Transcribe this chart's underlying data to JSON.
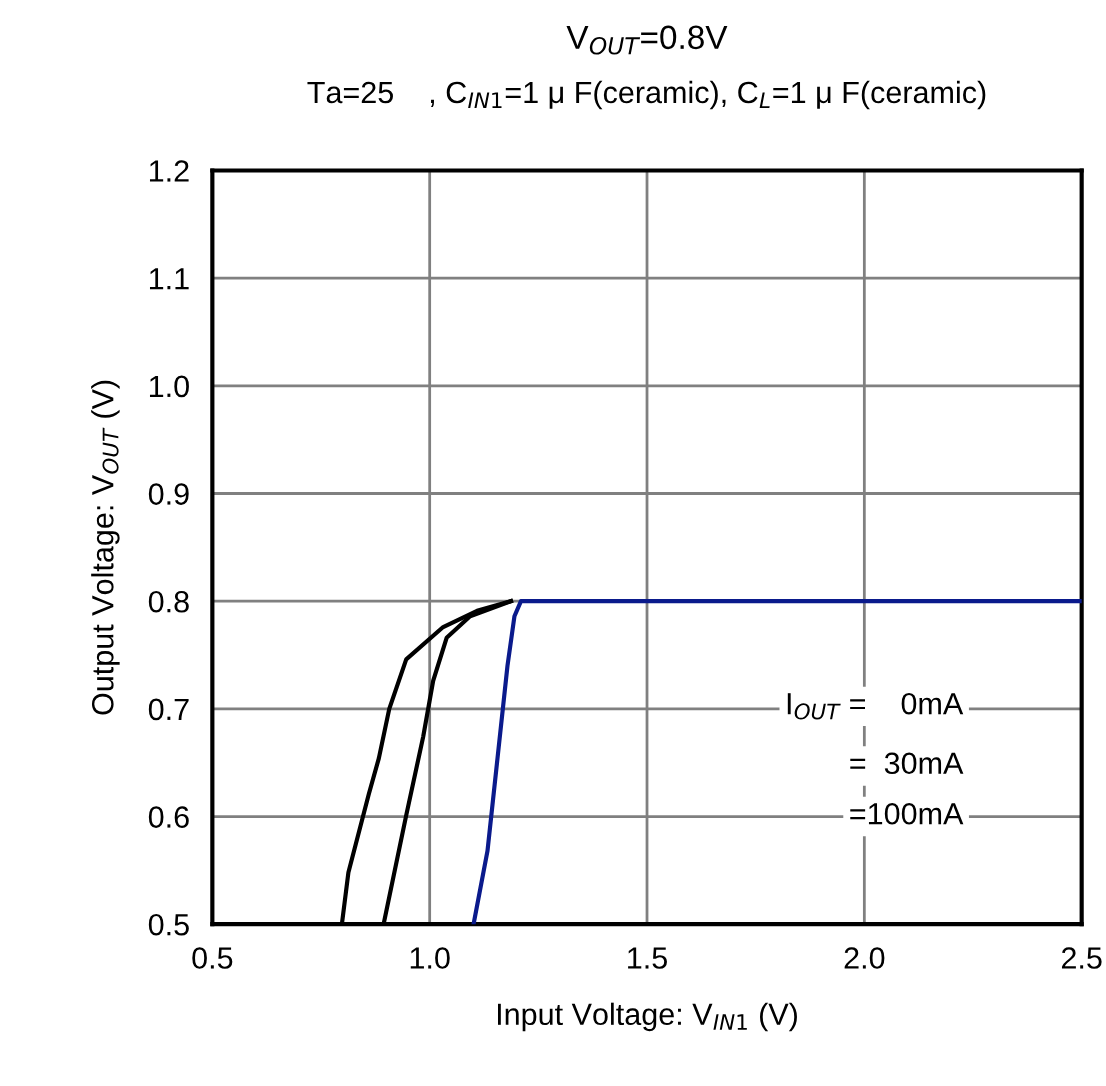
{
  "chart_data": {
    "type": "line",
    "title": "V$_{OUT}$=0.8V",
    "subtitle": "Ta=25    , C$_{IN1}$=1 μ F(ceramic), C$_{L}$=1 μ F(ceramic)",
    "xlabel": "Input Voltage: V$_{IN1}$ (V)",
    "ylabel": "Output Voltage: V$_{OUT}$ (V)",
    "series": [
      {
        "color": "#000000",
        "x": [
          0.798,
          0.813,
          0.86,
          0.883,
          0.907,
          0.946,
          1.031,
          1.109,
          1.187
        ],
        "values": [
          0.5,
          0.548,
          0.621,
          0.654,
          0.7,
          0.746,
          0.776,
          0.791,
          0.8
        ]
      },
      {
        "color": "#000000",
        "x": [
          0.894,
          0.946,
          0.985,
          1.008,
          1.039,
          1.093,
          1.187
        ],
        "values": [
          0.5,
          0.601,
          0.674,
          0.726,
          0.766,
          0.786,
          0.8
        ]
      },
      {
        "color": "#0a1a8c",
        "x": [
          1.101,
          1.133,
          1.156,
          1.179,
          1.195,
          1.21,
          2.5
        ],
        "values": [
          0.5,
          0.568,
          0.654,
          0.74,
          0.786,
          0.8,
          0.8
        ]
      }
    ],
    "annotations": [
      "I$_{OUT}$ =    0mA",
      "=  30mA",
      "=100mA"
    ],
    "xlim": [
      0.5,
      2.5
    ],
    "xticks": [
      {
        "value": 0.5,
        "label": "0.5"
      },
      {
        "value": 1.0,
        "label": "1.0"
      },
      {
        "value": 1.5,
        "label": "1.5"
      },
      {
        "value": 2.0,
        "label": "2.0"
      },
      {
        "value": 2.5,
        "label": "2.5"
      }
    ],
    "ylim": [
      0.5,
      1.2
    ],
    "yticks": [
      {
        "value": 0.5,
        "label": "0.5"
      },
      {
        "value": 0.6,
        "label": "0.6"
      },
      {
        "value": 0.7,
        "label": "0.7"
      },
      {
        "value": 0.8,
        "label": "0.8"
      },
      {
        "value": 0.9,
        "label": "0.9"
      },
      {
        "value": 1.0,
        "label": "1.0"
      },
      {
        "value": 1.1,
        "label": "1.1"
      },
      {
        "value": 1.2,
        "label": "1.2"
      }
    ],
    "grid": true,
    "line_style": "solid"
  }
}
